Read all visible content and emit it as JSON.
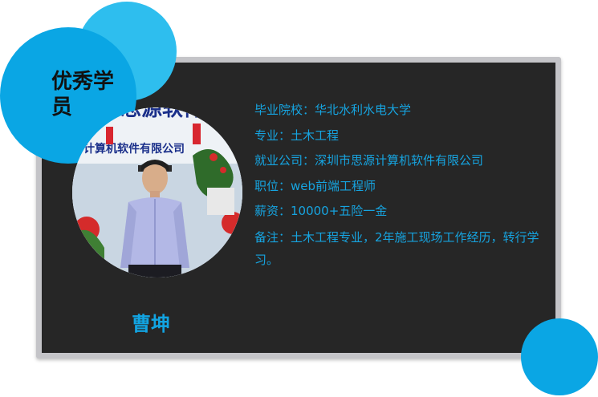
{
  "badge": {
    "title": "优秀学员"
  },
  "photo": {
    "sign_text": "思源软件",
    "sign_subtext": "计算机软件有限公司"
  },
  "student": {
    "name": "曹坤"
  },
  "info": [
    "毕业院校：华北水利水电大学",
    "专业：土木工程",
    "就业公司：深圳市思源计算机软件有限公司",
    "职位：web前端工程师",
    "薪资：10000+五险一金",
    "备注：土木工程专业，2年施工现场工作经历，转行学习。"
  ],
  "colors": {
    "accent": "#0aa6e4",
    "accent_light": "#2ebeee",
    "card_bg": "#262626",
    "frame": "#c4c4c8",
    "text": "#16a4e0"
  }
}
